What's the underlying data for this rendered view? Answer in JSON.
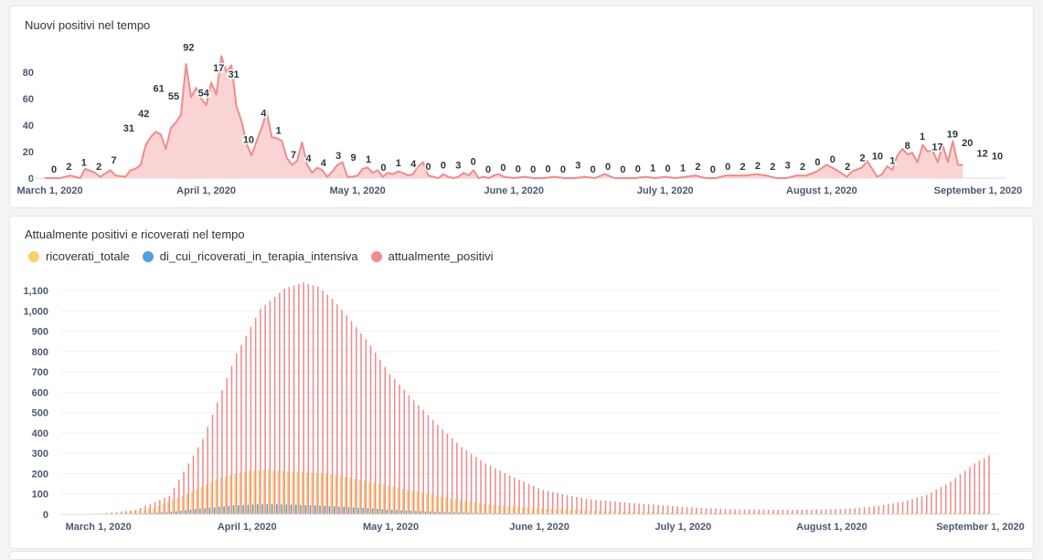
{
  "charts": [
    {
      "title": "Nuovi positivi nel tempo",
      "legend": []
    },
    {
      "title": "Attualmente positivi e ricoverati nel tempo",
      "legend": [
        {
          "label": "ricoverati_totale",
          "color": "#f7d26a"
        },
        {
          "label": "di_cui_ricoverati_in_terapia_intensiva",
          "color": "#509ee3"
        },
        {
          "label": "attualmente_positivi",
          "color": "#ef8c8c"
        }
      ]
    }
  ],
  "chart_data": [
    {
      "type": "area",
      "title": "Nuovi positivi nel tempo",
      "color": "#ef8c8c",
      "fill": "#fad4d4",
      "x_range": [
        "2020-02-29",
        "2020-09-03"
      ],
      "ylim": [
        0,
        95
      ],
      "y_ticks": [
        0,
        20,
        40,
        60,
        80
      ],
      "x_ticks": [
        "2020-03-01",
        "2020-04-01",
        "2020-05-01",
        "2020-06-01",
        "2020-07-01",
        "2020-08-01",
        "2020-09-01"
      ],
      "x_tick_labels": [
        "March 1, 2020",
        "April 1, 2020",
        "May 1, 2020",
        "June 1, 2020",
        "July 1, 2020",
        "August 1, 2020",
        "September 1, 2020"
      ],
      "points": [
        [
          "2020-02-29",
          0
        ],
        [
          "2020-03-03",
          0
        ],
        [
          "2020-03-05",
          2
        ],
        [
          "2020-03-07",
          0
        ],
        [
          "2020-03-08",
          7
        ],
        [
          "2020-03-10",
          4
        ],
        [
          "2020-03-11",
          1
        ],
        [
          "2020-03-13",
          6
        ],
        [
          "2020-03-14",
          2
        ],
        [
          "2020-03-16",
          1
        ],
        [
          "2020-03-17",
          6
        ],
        [
          "2020-03-18",
          7
        ],
        [
          "2020-03-19",
          10
        ],
        [
          "2020-03-20",
          25
        ],
        [
          "2020-03-21",
          31
        ],
        [
          "2020-03-22",
          35
        ],
        [
          "2020-03-23",
          33
        ],
        [
          "2020-03-24",
          22
        ],
        [
          "2020-03-25",
          38
        ],
        [
          "2020-03-26",
          42
        ],
        [
          "2020-03-27",
          48
        ],
        [
          "2020-03-28",
          86
        ],
        [
          "2020-03-29",
          61
        ],
        [
          "2020-03-30",
          68
        ],
        [
          "2020-03-31",
          60
        ],
        [
          "2020-04-01",
          55
        ],
        [
          "2020-04-02",
          72
        ],
        [
          "2020-04-03",
          63
        ],
        [
          "2020-04-04",
          92
        ],
        [
          "2020-04-05",
          80
        ],
        [
          "2020-04-06",
          85
        ],
        [
          "2020-04-07",
          54
        ],
        [
          "2020-04-08",
          43
        ],
        [
          "2020-04-09",
          26
        ],
        [
          "2020-04-10",
          17
        ],
        [
          "2020-04-11",
          28
        ],
        [
          "2020-04-12",
          38
        ],
        [
          "2020-04-13",
          50
        ],
        [
          "2020-04-14",
          31
        ],
        [
          "2020-04-15",
          30
        ],
        [
          "2020-04-16",
          28
        ],
        [
          "2020-04-17",
          15
        ],
        [
          "2020-04-18",
          10
        ],
        [
          "2020-04-19",
          13
        ],
        [
          "2020-04-20",
          27
        ],
        [
          "2020-04-21",
          10
        ],
        [
          "2020-04-22",
          4
        ],
        [
          "2020-04-23",
          8
        ],
        [
          "2020-04-24",
          6
        ],
        [
          "2020-04-25",
          1
        ],
        [
          "2020-04-26",
          5
        ],
        [
          "2020-04-27",
          10
        ],
        [
          "2020-04-28",
          12
        ],
        [
          "2020-04-29",
          1
        ],
        [
          "2020-04-30",
          1
        ],
        [
          "2020-05-01",
          2
        ],
        [
          "2020-05-02",
          7
        ],
        [
          "2020-05-03",
          8
        ],
        [
          "2020-05-04",
          4
        ],
        [
          "2020-05-05",
          6
        ],
        [
          "2020-05-06",
          1
        ],
        [
          "2020-05-07",
          4
        ],
        [
          "2020-05-08",
          3
        ],
        [
          "2020-05-09",
          5
        ],
        [
          "2020-05-10",
          4
        ],
        [
          "2020-05-11",
          2
        ],
        [
          "2020-05-12",
          3
        ],
        [
          "2020-05-13",
          9
        ],
        [
          "2020-05-14",
          12
        ],
        [
          "2020-05-15",
          2
        ],
        [
          "2020-05-16",
          1
        ],
        [
          "2020-05-17",
          0
        ],
        [
          "2020-05-18",
          3
        ],
        [
          "2020-05-19",
          1
        ],
        [
          "2020-05-20",
          0
        ],
        [
          "2020-05-21",
          1
        ],
        [
          "2020-05-22",
          4
        ],
        [
          "2020-05-23",
          2
        ],
        [
          "2020-05-24",
          6
        ],
        [
          "2020-05-25",
          0
        ],
        [
          "2020-05-26",
          1
        ],
        [
          "2020-05-27",
          0
        ],
        [
          "2020-05-28",
          2
        ],
        [
          "2020-05-29",
          3
        ],
        [
          "2020-05-30",
          1
        ],
        [
          "2020-06-01",
          0
        ],
        [
          "2020-06-03",
          1
        ],
        [
          "2020-06-05",
          0
        ],
        [
          "2020-06-07",
          0
        ],
        [
          "2020-06-09",
          1
        ],
        [
          "2020-06-11",
          0
        ],
        [
          "2020-06-13",
          0
        ],
        [
          "2020-06-15",
          1
        ],
        [
          "2020-06-17",
          0
        ],
        [
          "2020-06-19",
          3
        ],
        [
          "2020-06-21",
          0
        ],
        [
          "2020-06-23",
          0
        ],
        [
          "2020-06-25",
          0
        ],
        [
          "2020-06-27",
          1
        ],
        [
          "2020-06-29",
          0
        ],
        [
          "2020-07-01",
          1
        ],
        [
          "2020-07-03",
          0
        ],
        [
          "2020-07-05",
          1
        ],
        [
          "2020-07-07",
          2
        ],
        [
          "2020-07-09",
          0
        ],
        [
          "2020-07-11",
          0
        ],
        [
          "2020-07-13",
          2
        ],
        [
          "2020-07-15",
          2
        ],
        [
          "2020-07-17",
          2
        ],
        [
          "2020-07-19",
          3
        ],
        [
          "2020-07-21",
          2
        ],
        [
          "2020-07-23",
          0
        ],
        [
          "2020-07-25",
          0
        ],
        [
          "2020-07-27",
          2
        ],
        [
          "2020-07-29",
          2
        ],
        [
          "2020-07-31",
          5
        ],
        [
          "2020-08-02",
          10
        ],
        [
          "2020-08-04",
          6
        ],
        [
          "2020-08-06",
          1
        ],
        [
          "2020-08-07",
          5
        ],
        [
          "2020-08-09",
          8
        ],
        [
          "2020-08-10",
          13
        ],
        [
          "2020-08-12",
          1
        ],
        [
          "2020-08-13",
          3
        ],
        [
          "2020-08-14",
          9
        ],
        [
          "2020-08-15",
          6
        ],
        [
          "2020-08-16",
          17
        ],
        [
          "2020-08-17",
          22
        ],
        [
          "2020-08-18",
          18
        ],
        [
          "2020-08-19",
          19
        ],
        [
          "2020-08-20",
          12
        ],
        [
          "2020-08-21",
          25
        ],
        [
          "2020-08-22",
          20
        ],
        [
          "2020-08-23",
          21
        ],
        [
          "2020-08-24",
          12
        ],
        [
          "2020-08-25",
          25
        ],
        [
          "2020-08-26",
          12
        ],
        [
          "2020-08-27",
          28
        ],
        [
          "2020-08-28",
          10
        ],
        [
          "2020-08-29",
          10
        ]
      ],
      "data_labels": [
        [
          "2020-03-01",
          0
        ],
        [
          "2020-03-05",
          2
        ],
        [
          "2020-03-09",
          1
        ],
        [
          "2020-03-13",
          2
        ],
        [
          "2020-03-17",
          7
        ],
        [
          "2020-03-21",
          31
        ],
        [
          "2020-03-25",
          42
        ],
        [
          "2020-03-29",
          61
        ],
        [
          "2020-04-02",
          55
        ],
        [
          "2020-04-06",
          92
        ],
        [
          "2020-04-10",
          54
        ],
        [
          "2020-04-14",
          17
        ],
        [
          "2020-04-18",
          31
        ],
        [
          "2020-04-22",
          10
        ],
        [
          "2020-04-26",
          4
        ],
        [
          "2020-04-30",
          1
        ],
        [
          "2020-05-04",
          7
        ],
        [
          "2020-05-08",
          4
        ],
        [
          "2020-05-12",
          4
        ],
        [
          "2020-05-16",
          3
        ],
        [
          "2020-05-20",
          9
        ],
        [
          "2020-05-24",
          1
        ],
        [
          "2020-05-28",
          0
        ],
        [
          "2020-06-01",
          1
        ],
        [
          "2020-06-05",
          4
        ],
        [
          "2020-06-09",
          0
        ],
        [
          "2020-06-13",
          0
        ],
        [
          "2020-06-17",
          3
        ],
        [
          "2020-06-21",
          0
        ],
        [
          "2020-06-25",
          0
        ],
        [
          "2020-06-29",
          0
        ],
        [
          "2020-07-03",
          0
        ],
        [
          "2020-07-07",
          0
        ],
        [
          "2020-07-11",
          0
        ],
        [
          "2020-07-15",
          0
        ],
        [
          "2020-07-19",
          3
        ],
        [
          "2020-07-23",
          0
        ],
        [
          "2020-07-27",
          0
        ],
        [
          "2020-07-31",
          0
        ],
        [
          "2020-08-04",
          0
        ],
        [
          "2020-08-08",
          1
        ],
        [
          "2020-08-12",
          0
        ],
        [
          "2020-08-16",
          1
        ],
        [
          "2020-08-20",
          2
        ],
        [
          "2020-08-24",
          0
        ],
        [
          "2020-08-28",
          0
        ],
        [
          "2020-09-01",
          2
        ],
        [
          "2020-09-05",
          2
        ],
        [
          "2020-09-09",
          2
        ],
        [
          "2020-09-13",
          3
        ],
        [
          "2020-09-17",
          2
        ],
        [
          "2020-09-21",
          0
        ],
        [
          "2020-09-25",
          0
        ],
        [
          "2020-09-29",
          2
        ],
        [
          "2020-10-03",
          2
        ],
        [
          "2020-10-07",
          10
        ],
        [
          "2020-10-11",
          1
        ],
        [
          "2020-10-15",
          8
        ],
        [
          "2020-10-19",
          1
        ],
        [
          "2020-10-23",
          17
        ],
        [
          "2020-10-27",
          19
        ],
        [
          "2020-10-31",
          20
        ],
        [
          "2020-11-04",
          12
        ],
        [
          "2020-11-08",
          10
        ]
      ],
      "data_label_positions": "sequence"
    },
    {
      "type": "bar",
      "title": "Attualmente positivi e ricoverati nel tempo",
      "x_range": [
        "2020-02-23",
        "2020-09-03"
      ],
      "first_day": "2020-02-24",
      "last_day": "2020-09-02",
      "ylim": [
        0,
        1150
      ],
      "y_ticks": [
        0,
        100,
        200,
        300,
        400,
        500,
        600,
        700,
        800,
        900,
        1000,
        1100
      ],
      "y_tick_labels": [
        "0",
        "100",
        "200",
        "300",
        "400",
        "500",
        "600",
        "700",
        "800",
        "900",
        "1,000",
        "1,100"
      ],
      "x_ticks": [
        "2020-03-01",
        "2020-04-01",
        "2020-05-01",
        "2020-06-01",
        "2020-07-01",
        "2020-08-01",
        "2020-09-01"
      ],
      "x_tick_labels": [
        "March 1, 2020",
        "April 1, 2020",
        "May 1, 2020",
        "June 1, 2020",
        "July 1, 2020",
        "August 1, 2020",
        "September 1, 2020"
      ],
      "series": [
        {
          "name": "attualmente_positivi",
          "color": "#ef8c8c",
          "keypoints": [
            [
              "2020-02-24",
              0
            ],
            [
              "2020-03-01",
              4
            ],
            [
              "2020-03-08",
              22
            ],
            [
              "2020-03-15",
              90
            ],
            [
              "2020-03-22",
              370
            ],
            [
              "2020-03-29",
              790
            ],
            [
              "2020-04-03",
              1010
            ],
            [
              "2020-04-08",
              1110
            ],
            [
              "2020-04-12",
              1140
            ],
            [
              "2020-04-15",
              1120
            ],
            [
              "2020-04-18",
              1060
            ],
            [
              "2020-04-22",
              950
            ],
            [
              "2020-04-26",
              830
            ],
            [
              "2020-04-30",
              690
            ],
            [
              "2020-05-05",
              560
            ],
            [
              "2020-05-10",
              440
            ],
            [
              "2020-05-15",
              330
            ],
            [
              "2020-05-20",
              250
            ],
            [
              "2020-05-26",
              180
            ],
            [
              "2020-06-01",
              120
            ],
            [
              "2020-06-10",
              75
            ],
            [
              "2020-06-20",
              55
            ],
            [
              "2020-07-01",
              35
            ],
            [
              "2020-07-10",
              25
            ],
            [
              "2020-07-20",
              22
            ],
            [
              "2020-07-31",
              24
            ],
            [
              "2020-08-05",
              30
            ],
            [
              "2020-08-10",
              42
            ],
            [
              "2020-08-15",
              62
            ],
            [
              "2020-08-20",
              95
            ],
            [
              "2020-08-25",
              160
            ],
            [
              "2020-08-30",
              250
            ],
            [
              "2020-09-02",
              290
            ]
          ]
        },
        {
          "name": "ricoverati_totale",
          "color": "#f7d26a",
          "keypoints": [
            [
              "2020-02-24",
              0
            ],
            [
              "2020-03-05",
              5
            ],
            [
              "2020-03-12",
              30
            ],
            [
              "2020-03-19",
              100
            ],
            [
              "2020-03-26",
              180
            ],
            [
              "2020-04-01",
              215
            ],
            [
              "2020-04-05",
              220
            ],
            [
              "2020-04-10",
              210
            ],
            [
              "2020-04-17",
              200
            ],
            [
              "2020-04-24",
              170
            ],
            [
              "2020-05-01",
              135
            ],
            [
              "2020-05-08",
              100
            ],
            [
              "2020-05-15",
              70
            ],
            [
              "2020-05-22",
              45
            ],
            [
              "2020-06-01",
              28
            ],
            [
              "2020-06-15",
              15
            ],
            [
              "2020-07-01",
              8
            ],
            [
              "2020-07-31",
              5
            ],
            [
              "2020-08-15",
              6
            ],
            [
              "2020-09-02",
              10
            ]
          ]
        },
        {
          "name": "di_cui_ricoverati_in_terapia_intensiva",
          "color": "#509ee3",
          "keypoints": [
            [
              "2020-02-24",
              0
            ],
            [
              "2020-03-08",
              3
            ],
            [
              "2020-03-15",
              10
            ],
            [
              "2020-03-22",
              28
            ],
            [
              "2020-03-29",
              44
            ],
            [
              "2020-04-04",
              50
            ],
            [
              "2020-04-10",
              48
            ],
            [
              "2020-04-17",
              42
            ],
            [
              "2020-04-24",
              33
            ],
            [
              "2020-05-01",
              22
            ],
            [
              "2020-05-10",
              12
            ],
            [
              "2020-05-20",
              6
            ],
            [
              "2020-06-01",
              3
            ],
            [
              "2020-06-20",
              1
            ],
            [
              "2020-09-02",
              1
            ]
          ]
        }
      ]
    }
  ]
}
